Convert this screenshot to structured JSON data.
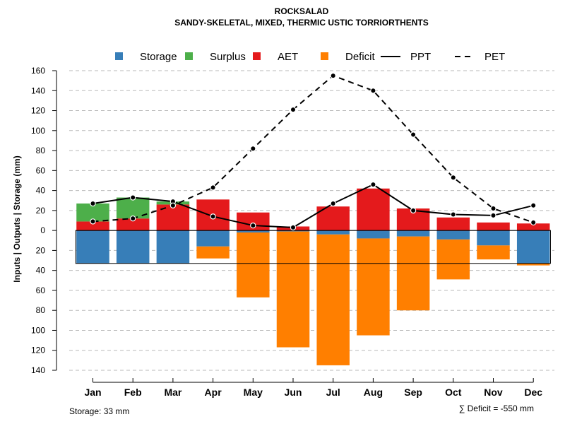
{
  "chart_data": {
    "type": "bar",
    "title": "ROCKSALAD",
    "subtitle": "SANDY-SKELETAL, MIXED, THERMIC USTIC TORRIORTHENTS",
    "xlabel": "",
    "ylabel": "Inputs | Outputs | Storage    (mm)",
    "ylim": [
      -140,
      160
    ],
    "y_ticks": [
      160,
      140,
      120,
      100,
      80,
      60,
      40,
      20,
      0,
      -20,
      -40,
      -60,
      -80,
      -100,
      -120,
      -140
    ],
    "y_tick_labels": [
      "160",
      "140",
      "120",
      "100",
      "80",
      "60",
      "40",
      "20",
      "0",
      "20",
      "40",
      "60",
      "80",
      "100",
      "120",
      "140"
    ],
    "grid": true,
    "legend_position": "top",
    "categories": [
      "Jan",
      "Feb",
      "Mar",
      "Apr",
      "May",
      "Jun",
      "Jul",
      "Aug",
      "Sep",
      "Oct",
      "Nov",
      "Dec"
    ],
    "bar_series": [
      {
        "name": "AET",
        "color": "#E41A1C",
        "stack": "positive",
        "values": [
          9,
          12,
          26,
          31,
          18,
          4,
          24,
          42,
          22,
          13,
          8,
          7
        ]
      },
      {
        "name": "Surplus",
        "color": "#4DAF4A",
        "stack": "positive",
        "values": [
          18,
          21,
          3,
          0,
          0,
          0,
          0,
          0,
          0,
          0,
          0,
          0
        ]
      },
      {
        "name": "Storage",
        "color": "#377EB8",
        "stack": "negative",
        "values": [
          33,
          33,
          33,
          16,
          2,
          1,
          4,
          8,
          6,
          9,
          15,
          33
        ]
      },
      {
        "name": "Deficit",
        "color": "#FF7F00",
        "stack": "negative",
        "values": [
          0,
          0,
          0,
          12,
          65,
          116,
          131,
          97,
          74,
          40,
          14,
          2
        ]
      }
    ],
    "line_series": [
      {
        "name": "PPT",
        "style": "solid",
        "values": [
          27,
          33,
          29,
          14,
          5,
          3,
          27,
          46,
          20,
          16,
          15,
          25
        ]
      },
      {
        "name": "PET",
        "style": "dashed",
        "values": [
          9,
          12,
          25,
          43,
          82,
          121,
          155,
          140,
          96,
          53,
          22,
          8
        ]
      }
    ],
    "legend": [
      {
        "name": "Storage",
        "kind": "box",
        "color": "#377EB8"
      },
      {
        "name": "Surplus",
        "kind": "box",
        "color": "#4DAF4A"
      },
      {
        "name": "AET",
        "kind": "box",
        "color": "#E41A1C"
      },
      {
        "name": "Deficit",
        "kind": "box",
        "color": "#FF7F00"
      },
      {
        "name": "PPT",
        "kind": "solid"
      },
      {
        "name": "PET",
        "kind": "dashed"
      }
    ],
    "storage_capacity": 33,
    "footer_left": "Storage: 33 mm",
    "footer_right": "∑ Deficit = -550 mm"
  }
}
